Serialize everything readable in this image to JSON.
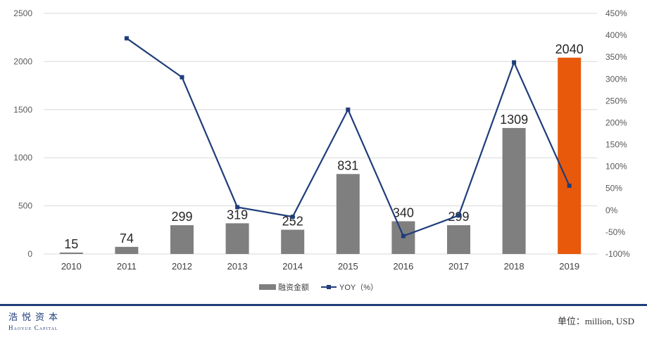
{
  "chart_data": {
    "type": "bar",
    "categories": [
      "2010",
      "2011",
      "2012",
      "2013",
      "2014",
      "2015",
      "2016",
      "2017",
      "2018",
      "2019"
    ],
    "series": [
      {
        "name": "融资金额",
        "type": "bar",
        "axis": "left",
        "values": [
          15,
          74,
          299,
          319,
          252,
          831,
          340,
          299,
          1309,
          2040
        ]
      },
      {
        "name": "YOY（%）",
        "type": "line",
        "axis": "right",
        "values": [
          null,
          393,
          304,
          7,
          -15,
          230,
          -59,
          -12,
          338,
          56
        ]
      }
    ],
    "left_axis": {
      "min": 0,
      "max": 2500,
      "ticks": [
        "0",
        "500",
        "1000",
        "1500",
        "2000",
        "2500"
      ]
    },
    "right_axis": {
      "min": -100,
      "max": 450,
      "ticks": [
        "-100%",
        "-50%",
        "0%",
        "50%",
        "100%",
        "150%",
        "200%",
        "250%",
        "300%",
        "350%",
        "400%",
        "450%"
      ]
    },
    "legend_position": "bottom",
    "grid": true,
    "highlight": {
      "category": "2019",
      "color": "#e8590c"
    },
    "colors": {
      "bar": "#7f7f7f",
      "line": "#1f3d7a",
      "grid": "#d9d9d9"
    }
  },
  "footer": {
    "brand_cn": "浩悦资本",
    "brand_en": "Haoyue Capital",
    "unit": "单位：million, USD"
  }
}
